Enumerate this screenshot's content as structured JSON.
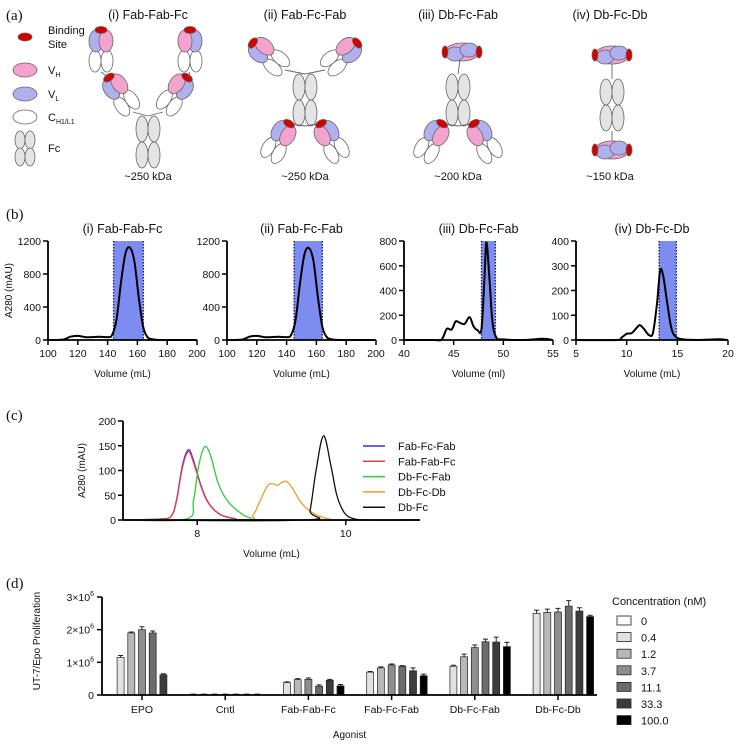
{
  "panel_labels": [
    "(a)",
    "(b)",
    "(c)",
    "(d)"
  ],
  "diagram": {
    "legend": [
      {
        "label": "Binding",
        "label2": "Site",
        "icon": "binding-site"
      },
      {
        "label": "V",
        "sub": "H",
        "icon": "vh-domain"
      },
      {
        "label": "V",
        "sub": "L",
        "icon": "vl-domain"
      },
      {
        "label": "C",
        "sub": "H1/L1",
        "icon": "constant-domain"
      },
      {
        "label": "Fc",
        "icon": "fc-domain"
      }
    ],
    "constructs": [
      {
        "title": "(i) Fab-Fab-Fc",
        "mass": "~250 kDa"
      },
      {
        "title": "(ii) Fab-Fc-Fab",
        "mass": "~250 kDa"
      },
      {
        "title": "(iii) Db-Fc-Fab",
        "mass": "~200 kDa"
      },
      {
        "title": "(iv) Db-Fc-Db",
        "mass": "~150 kDa"
      }
    ],
    "colors": {
      "binding_site": "#d40000",
      "vh": "#f4a3cf",
      "vl": "#b0b0ee",
      "constant": "#ffffff",
      "fc": "#e4e4e4"
    }
  },
  "chart_data": [
    {
      "type": "line",
      "title": "(i) Fab-Fab-Fc",
      "xlabel": "Volume (mL)",
      "ylabel": "A280 (mAU)",
      "xlim": [
        100,
        200
      ],
      "ylim": [
        0,
        1200
      ],
      "xticks": [
        100,
        120,
        140,
        160,
        180,
        200
      ],
      "yticks": [
        0,
        400,
        800,
        1200
      ],
      "shaded_range": [
        144,
        164
      ],
      "shade_color": "#7d8cf0",
      "line_color": "#000000",
      "x": [
        100,
        110,
        115,
        120,
        125,
        130,
        135,
        140,
        143,
        146,
        149,
        152,
        155,
        158,
        161,
        164,
        167,
        170,
        175,
        180,
        190,
        200
      ],
      "y": [
        0,
        5,
        40,
        50,
        35,
        35,
        40,
        35,
        60,
        250,
        700,
        1050,
        1120,
        950,
        500,
        150,
        30,
        10,
        0,
        0,
        0,
        0
      ]
    },
    {
      "type": "line",
      "title": "(ii) Fab-Fc-Fab",
      "xlabel": "Volume (mL)",
      "ylabel": "",
      "xlim": [
        100,
        200
      ],
      "ylim": [
        0,
        1200
      ],
      "xticks": [
        100,
        120,
        140,
        160,
        180,
        200
      ],
      "yticks": [
        0,
        400,
        800,
        1200
      ],
      "shaded_range": [
        145,
        164
      ],
      "shade_color": "#7d8cf0",
      "line_color": "#000000",
      "x": [
        100,
        110,
        115,
        120,
        125,
        130,
        135,
        140,
        143,
        146,
        149,
        152,
        155,
        158,
        161,
        164,
        167,
        170,
        175,
        180,
        190,
        200
      ],
      "y": [
        0,
        5,
        40,
        50,
        35,
        35,
        40,
        35,
        60,
        240,
        690,
        1040,
        1115,
        960,
        520,
        160,
        35,
        10,
        0,
        0,
        0,
        0
      ]
    },
    {
      "type": "line",
      "title": "(iii) Db-Fc-Fab",
      "xlabel": "Volume (ml)",
      "ylabel": "",
      "xlim": [
        40,
        55
      ],
      "ylim": [
        0,
        800
      ],
      "xticks": [
        40,
        45,
        50,
        55
      ],
      "yticks": [
        0,
        200,
        400,
        600,
        800
      ],
      "shaded_range": [
        47.8,
        49.2
      ],
      "shade_color": "#7d8cf0",
      "line_color": "#000000",
      "x": [
        40,
        43,
        43.8,
        44.3,
        44.8,
        45.2,
        45.6,
        46.1,
        46.6,
        47,
        47.4,
        47.8,
        48.1,
        48.3,
        48.6,
        48.9,
        49.3,
        50,
        52,
        54,
        55
      ],
      "y": [
        0,
        0,
        5,
        90,
        85,
        150,
        140,
        130,
        185,
        110,
        80,
        90,
        500,
        790,
        500,
        150,
        20,
        5,
        0,
        10,
        0
      ]
    },
    {
      "type": "line",
      "title": "(iv) Db-Fc-Db",
      "xlabel": "Volume (mL)",
      "ylabel": "",
      "xlim": [
        5,
        20
      ],
      "ylim": [
        0,
        400
      ],
      "xticks": [
        5,
        10,
        15,
        20
      ],
      "yticks": [
        0,
        100,
        200,
        300,
        400
      ],
      "shaded_range": [
        13.2,
        14.9
      ],
      "shade_color": "#7d8cf0",
      "line_color": "#000000",
      "x": [
        5,
        9,
        9.5,
        10,
        10.5,
        11,
        11.3,
        11.7,
        12.2,
        12.6,
        13,
        13.3,
        13.6,
        14,
        14.4,
        14.8,
        15.5,
        17,
        19,
        20
      ],
      "y": [
        0,
        0,
        10,
        25,
        28,
        50,
        60,
        45,
        20,
        30,
        150,
        280,
        260,
        150,
        50,
        15,
        3,
        0,
        3,
        0
      ]
    },
    {
      "type": "line",
      "title": "",
      "xlabel": "Volume (mL)",
      "ylabel": "A280 (mAU)",
      "xlim": [
        7,
        11
      ],
      "ylim": [
        0,
        200
      ],
      "xticks": [
        8,
        10
      ],
      "yticks": [
        0,
        50,
        100,
        150,
        200
      ],
      "legend_position": "right",
      "series": [
        {
          "name": "Fab-Fc-Fab",
          "color": "#3a2fd0",
          "x": [
            7,
            7.5,
            7.65,
            7.72,
            7.8,
            7.88,
            7.95,
            8.05,
            8.15,
            8.3,
            8.5,
            8.8,
            11
          ],
          "y": [
            0,
            2,
            8,
            40,
            110,
            142,
            120,
            70,
            35,
            12,
            3,
            0,
            0
          ]
        },
        {
          "name": "Fab-Fab-Fc",
          "color": "#e0404a",
          "x": [
            7,
            7.5,
            7.65,
            7.72,
            7.8,
            7.88,
            7.95,
            8.05,
            8.15,
            8.3,
            8.5,
            8.8,
            11
          ],
          "y": [
            0,
            2,
            8,
            38,
            106,
            138,
            116,
            68,
            34,
            12,
            3,
            0,
            0
          ]
        },
        {
          "name": "Db-Fc-Fab",
          "color": "#2ecc3a",
          "x": [
            7,
            7.85,
            7.95,
            8.02,
            8.1,
            8.18,
            8.28,
            8.4,
            8.55,
            8.7,
            9,
            11
          ],
          "y": [
            0,
            2,
            40,
            110,
            148,
            130,
            75,
            40,
            18,
            5,
            0,
            0
          ]
        },
        {
          "name": "Db-Fc-Db",
          "color": "#f39a2a",
          "x": [
            7,
            8.6,
            8.75,
            8.85,
            8.95,
            9.02,
            9.08,
            9.14,
            9.2,
            9.28,
            9.4,
            9.55,
            9.75,
            10,
            11
          ],
          "y": [
            0,
            0,
            10,
            40,
            70,
            73,
            70,
            76,
            78,
            65,
            35,
            15,
            3,
            0,
            0
          ]
        },
        {
          "name": "Db-Fc",
          "color": "#111111",
          "x": [
            7,
            9.45,
            9.52,
            9.6,
            9.7,
            9.8,
            9.88,
            9.98,
            10.1,
            10.3,
            11
          ],
          "y": [
            0,
            0,
            20,
            100,
            170,
            110,
            50,
            15,
            3,
            0,
            0
          ]
        }
      ]
    },
    {
      "type": "bar",
      "title": "",
      "xlabel": "Agonist",
      "ylabel": "UT-7/Epo Proliferation",
      "ylim": [
        0,
        3000000
      ],
      "yticks": [
        0,
        1000000,
        2000000,
        3000000
      ],
      "ytick_labels": [
        {
          "base": "0",
          "exp": ""
        },
        {
          "base": "1×10",
          "exp": "6"
        },
        {
          "base": "2×10",
          "exp": "6"
        },
        {
          "base": "3×10",
          "exp": "6"
        }
      ],
      "categories": [
        "EPO",
        "Cntl",
        "Fab-Fab-Fc",
        "Fab-Fc-Fab",
        "Db-Fc-Fab",
        "Db-Fc-Db"
      ],
      "legend_title": "Concentration (nM)",
      "legend_position": "right",
      "series": [
        {
          "name": "0",
          "color": "#fafafa",
          "values": [
            null,
            20000,
            null,
            null,
            null,
            null
          ],
          "errors": [
            null,
            5000,
            null,
            null,
            null,
            null
          ]
        },
        {
          "name": "0.4",
          "color": "#e2e2e2",
          "values": [
            1150000,
            20000,
            380000,
            700000,
            880000,
            2500000
          ],
          "errors": [
            60000,
            5000,
            20000,
            20000,
            30000,
            100000
          ]
        },
        {
          "name": "1.2",
          "color": "#b8b8b8",
          "values": [
            1900000,
            20000,
            470000,
            830000,
            1170000,
            2530000
          ],
          "errors": [
            30000,
            5000,
            30000,
            30000,
            80000,
            100000
          ]
        },
        {
          "name": "3.7",
          "color": "#8e8e8e",
          "values": [
            2000000,
            20000,
            480000,
            920000,
            1450000,
            2540000
          ],
          "errors": [
            90000,
            5000,
            40000,
            30000,
            80000,
            110000
          ]
        },
        {
          "name": "11.1",
          "color": "#6c6c6c",
          "values": [
            1900000,
            20000,
            270000,
            880000,
            1630000,
            2720000
          ],
          "errors": [
            60000,
            5000,
            40000,
            20000,
            80000,
            170000
          ]
        },
        {
          "name": "33.3",
          "color": "#3c3c3c",
          "values": [
            620000,
            20000,
            450000,
            740000,
            1620000,
            2570000
          ],
          "errors": [
            30000,
            5000,
            30000,
            90000,
            150000,
            100000
          ]
        },
        {
          "name": "100.0",
          "color": "#000000",
          "values": [
            null,
            20000,
            280000,
            590000,
            1480000,
            2400000
          ],
          "errors": [
            null,
            5000,
            40000,
            50000,
            130000,
            40000
          ]
        }
      ]
    }
  ]
}
